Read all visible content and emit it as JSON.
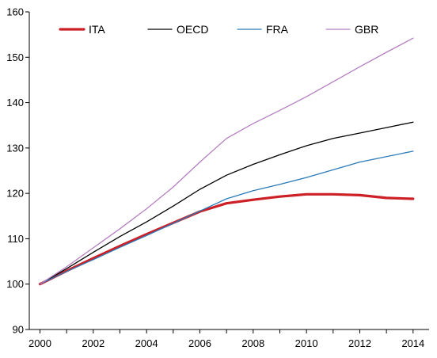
{
  "chart_data": {
    "type": "line",
    "title": "",
    "xlabel": "",
    "ylabel": "",
    "x": [
      2000,
      2001,
      2002,
      2003,
      2004,
      2005,
      2006,
      2007,
      2008,
      2009,
      2010,
      2011,
      2012,
      2013,
      2014
    ],
    "xticks": [
      "2000",
      "2002",
      "2004",
      "2006",
      "2008",
      "2010",
      "2012",
      "2014"
    ],
    "yticks": [
      "90",
      "100",
      "110",
      "120",
      "130",
      "140",
      "150",
      "160"
    ],
    "xlim": [
      1999.6,
      2014.6
    ],
    "ylim": [
      90,
      160
    ],
    "grid": false,
    "legend_position": "top",
    "series": [
      {
        "name": "ITA",
        "color": "#cc1f26",
        "width": 3.2,
        "values": [
          100,
          102.9,
          105.7,
          108.4,
          111.0,
          113.5,
          116.0,
          117.8,
          118.6,
          119.3,
          119.8,
          119.8,
          119.6,
          119.0,
          118.8
        ]
      },
      {
        "name": "OECD",
        "color": "#000000",
        "width": 1.3,
        "values": [
          100,
          103.4,
          107.0,
          110.5,
          113.7,
          117.2,
          120.9,
          124.0,
          126.4,
          128.5,
          130.5,
          132.1,
          133.3,
          134.5,
          135.7
        ]
      },
      {
        "name": "FRA",
        "color": "#2a7ab8",
        "width": 1.3,
        "values": [
          100,
          102.8,
          105.4,
          108.1,
          110.7,
          113.4,
          116.1,
          118.8,
          120.6,
          122.0,
          123.5,
          125.2,
          126.9,
          128.1,
          129.3
        ]
      },
      {
        "name": "GBR",
        "color": "#b57fc0",
        "width": 1.3,
        "values": [
          100,
          103.8,
          108.0,
          112.2,
          116.6,
          121.4,
          126.9,
          132.1,
          135.4,
          138.3,
          141.3,
          144.6,
          147.9,
          151.1,
          154.2
        ]
      }
    ]
  }
}
